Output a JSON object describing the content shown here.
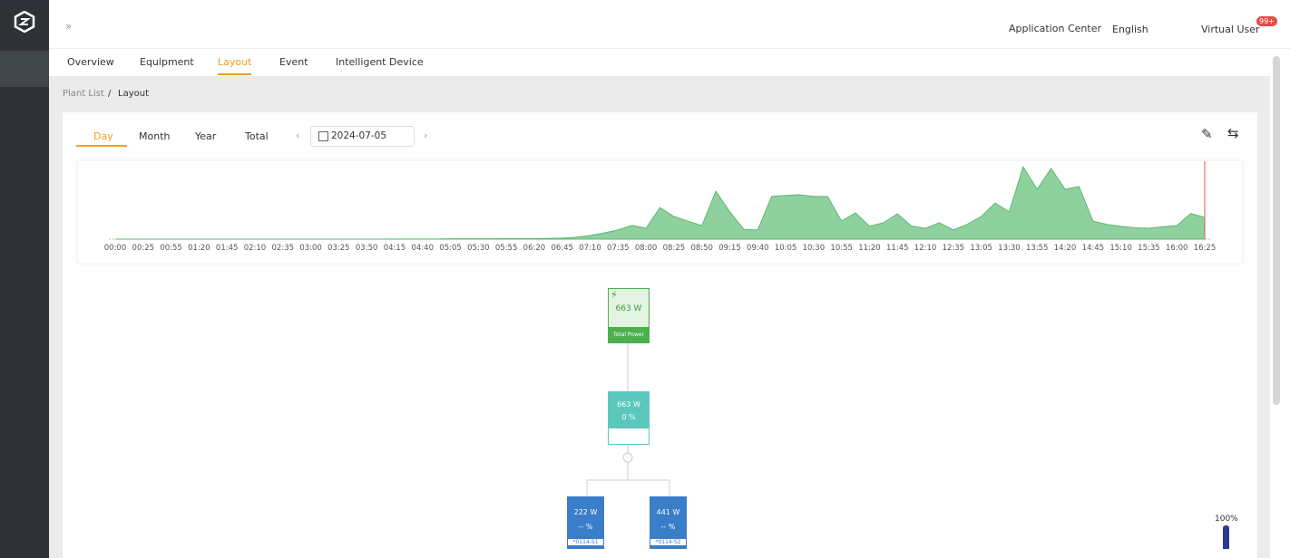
{
  "header": {
    "application_center": "Application Center",
    "language": "English",
    "user": "Virtual User",
    "badge": "99+"
  },
  "tabs": [
    "Overview",
    "Equipment",
    "Layout",
    "Event",
    "Intelligent Device"
  ],
  "breadcrumb": {
    "parent": "Plant List",
    "separator": "/",
    "current": "Layout"
  },
  "period_tabs": [
    "Day",
    "Month",
    "Year",
    "Total"
  ],
  "date": "2024-07-05",
  "chart_data": {
    "type": "area",
    "color": "#8fd19e",
    "line_color": "#5cb874",
    "ylim": [
      0,
      2400
    ],
    "categories": [
      "00:00",
      null,
      "00:25",
      null,
      "00:55",
      null,
      "01:20",
      null,
      "01:45",
      null,
      "02:10",
      null,
      "02:35",
      null,
      "03:00",
      null,
      "03:25",
      null,
      "03:50",
      null,
      "04:15",
      null,
      "04:40",
      null,
      "05:05",
      null,
      "05:30",
      null,
      "05:55",
      null,
      "06:20",
      null,
      "06:45",
      null,
      "07:10",
      null,
      "07:35",
      null,
      "08:00",
      null,
      "08:25",
      null,
      "08:50",
      null,
      "09:15",
      null,
      "09:40",
      null,
      "10:05",
      null,
      "10:30",
      null,
      "10:55",
      null,
      "11:20",
      null,
      "11:45",
      null,
      "12:10",
      null,
      "12:35",
      null,
      "13:05",
      null,
      "13:30",
      null,
      "13:55",
      null,
      "14:20",
      null,
      "14:45",
      null,
      "15:10",
      null,
      "15:35",
      null,
      "16:00",
      null,
      "16:25"
    ],
    "values": [
      0,
      0,
      0,
      0,
      0,
      0,
      0,
      0,
      0,
      0,
      0,
      0,
      0,
      0,
      0,
      0,
      0,
      0,
      0,
      0,
      5,
      5,
      5,
      5,
      10,
      10,
      10,
      10,
      15,
      15,
      15,
      20,
      30,
      60,
      110,
      190,
      280,
      420,
      330,
      960,
      690,
      550,
      410,
      1460,
      830,
      300,
      280,
      1300,
      1330,
      1350,
      1300,
      1300,
      550,
      800,
      390,
      500,
      770,
      400,
      330,
      500,
      280,
      450,
      690,
      1100,
      830,
      2200,
      1520,
      2150,
      1520,
      1600,
      550,
      450,
      390,
      350,
      330,
      380,
      410,
      780,
      663
    ]
  },
  "nodes": {
    "total": {
      "value": "663 W",
      "label": "Total Power"
    },
    "inverter": {
      "value": "663 W",
      "percent": "0 %"
    },
    "strings": [
      {
        "value": "222 W",
        "percent": "-- %",
        "label": "*0114-S1"
      },
      {
        "value": "441 W",
        "percent": "-- %",
        "label": "*0114-S2"
      }
    ],
    "legend_max": "100%"
  }
}
